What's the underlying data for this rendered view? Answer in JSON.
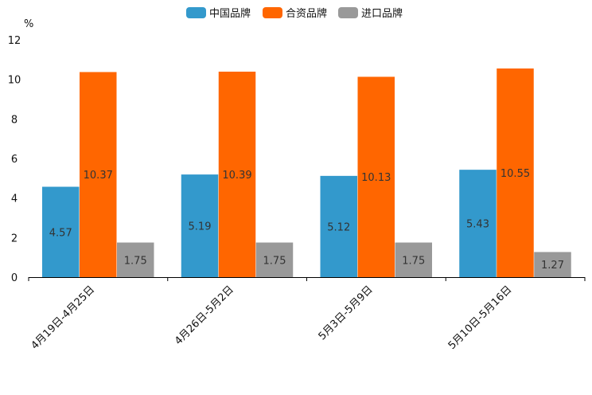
{
  "chart_data": {
    "type": "bar",
    "title": "",
    "xlabel": "",
    "ylabel": "%",
    "ylim": [
      0,
      12
    ],
    "yticks": [
      0,
      2,
      4,
      6,
      8,
      10,
      12
    ],
    "grid": false,
    "legend_position": "top-center",
    "categories": [
      "4月19日-4月25日",
      "4月26日-5月2日",
      "5月3日-5月9日",
      "5月10日-5月16日"
    ],
    "series": [
      {
        "name": "中国品牌",
        "color": "#3399cc",
        "values": [
          4.57,
          5.19,
          5.12,
          5.43
        ]
      },
      {
        "name": "合资品牌",
        "color": "#ff6600",
        "values": [
          10.37,
          10.39,
          10.13,
          10.55
        ]
      },
      {
        "name": "进口品牌",
        "color": "#999999",
        "values": [
          1.75,
          1.75,
          1.75,
          1.27
        ]
      }
    ]
  }
}
